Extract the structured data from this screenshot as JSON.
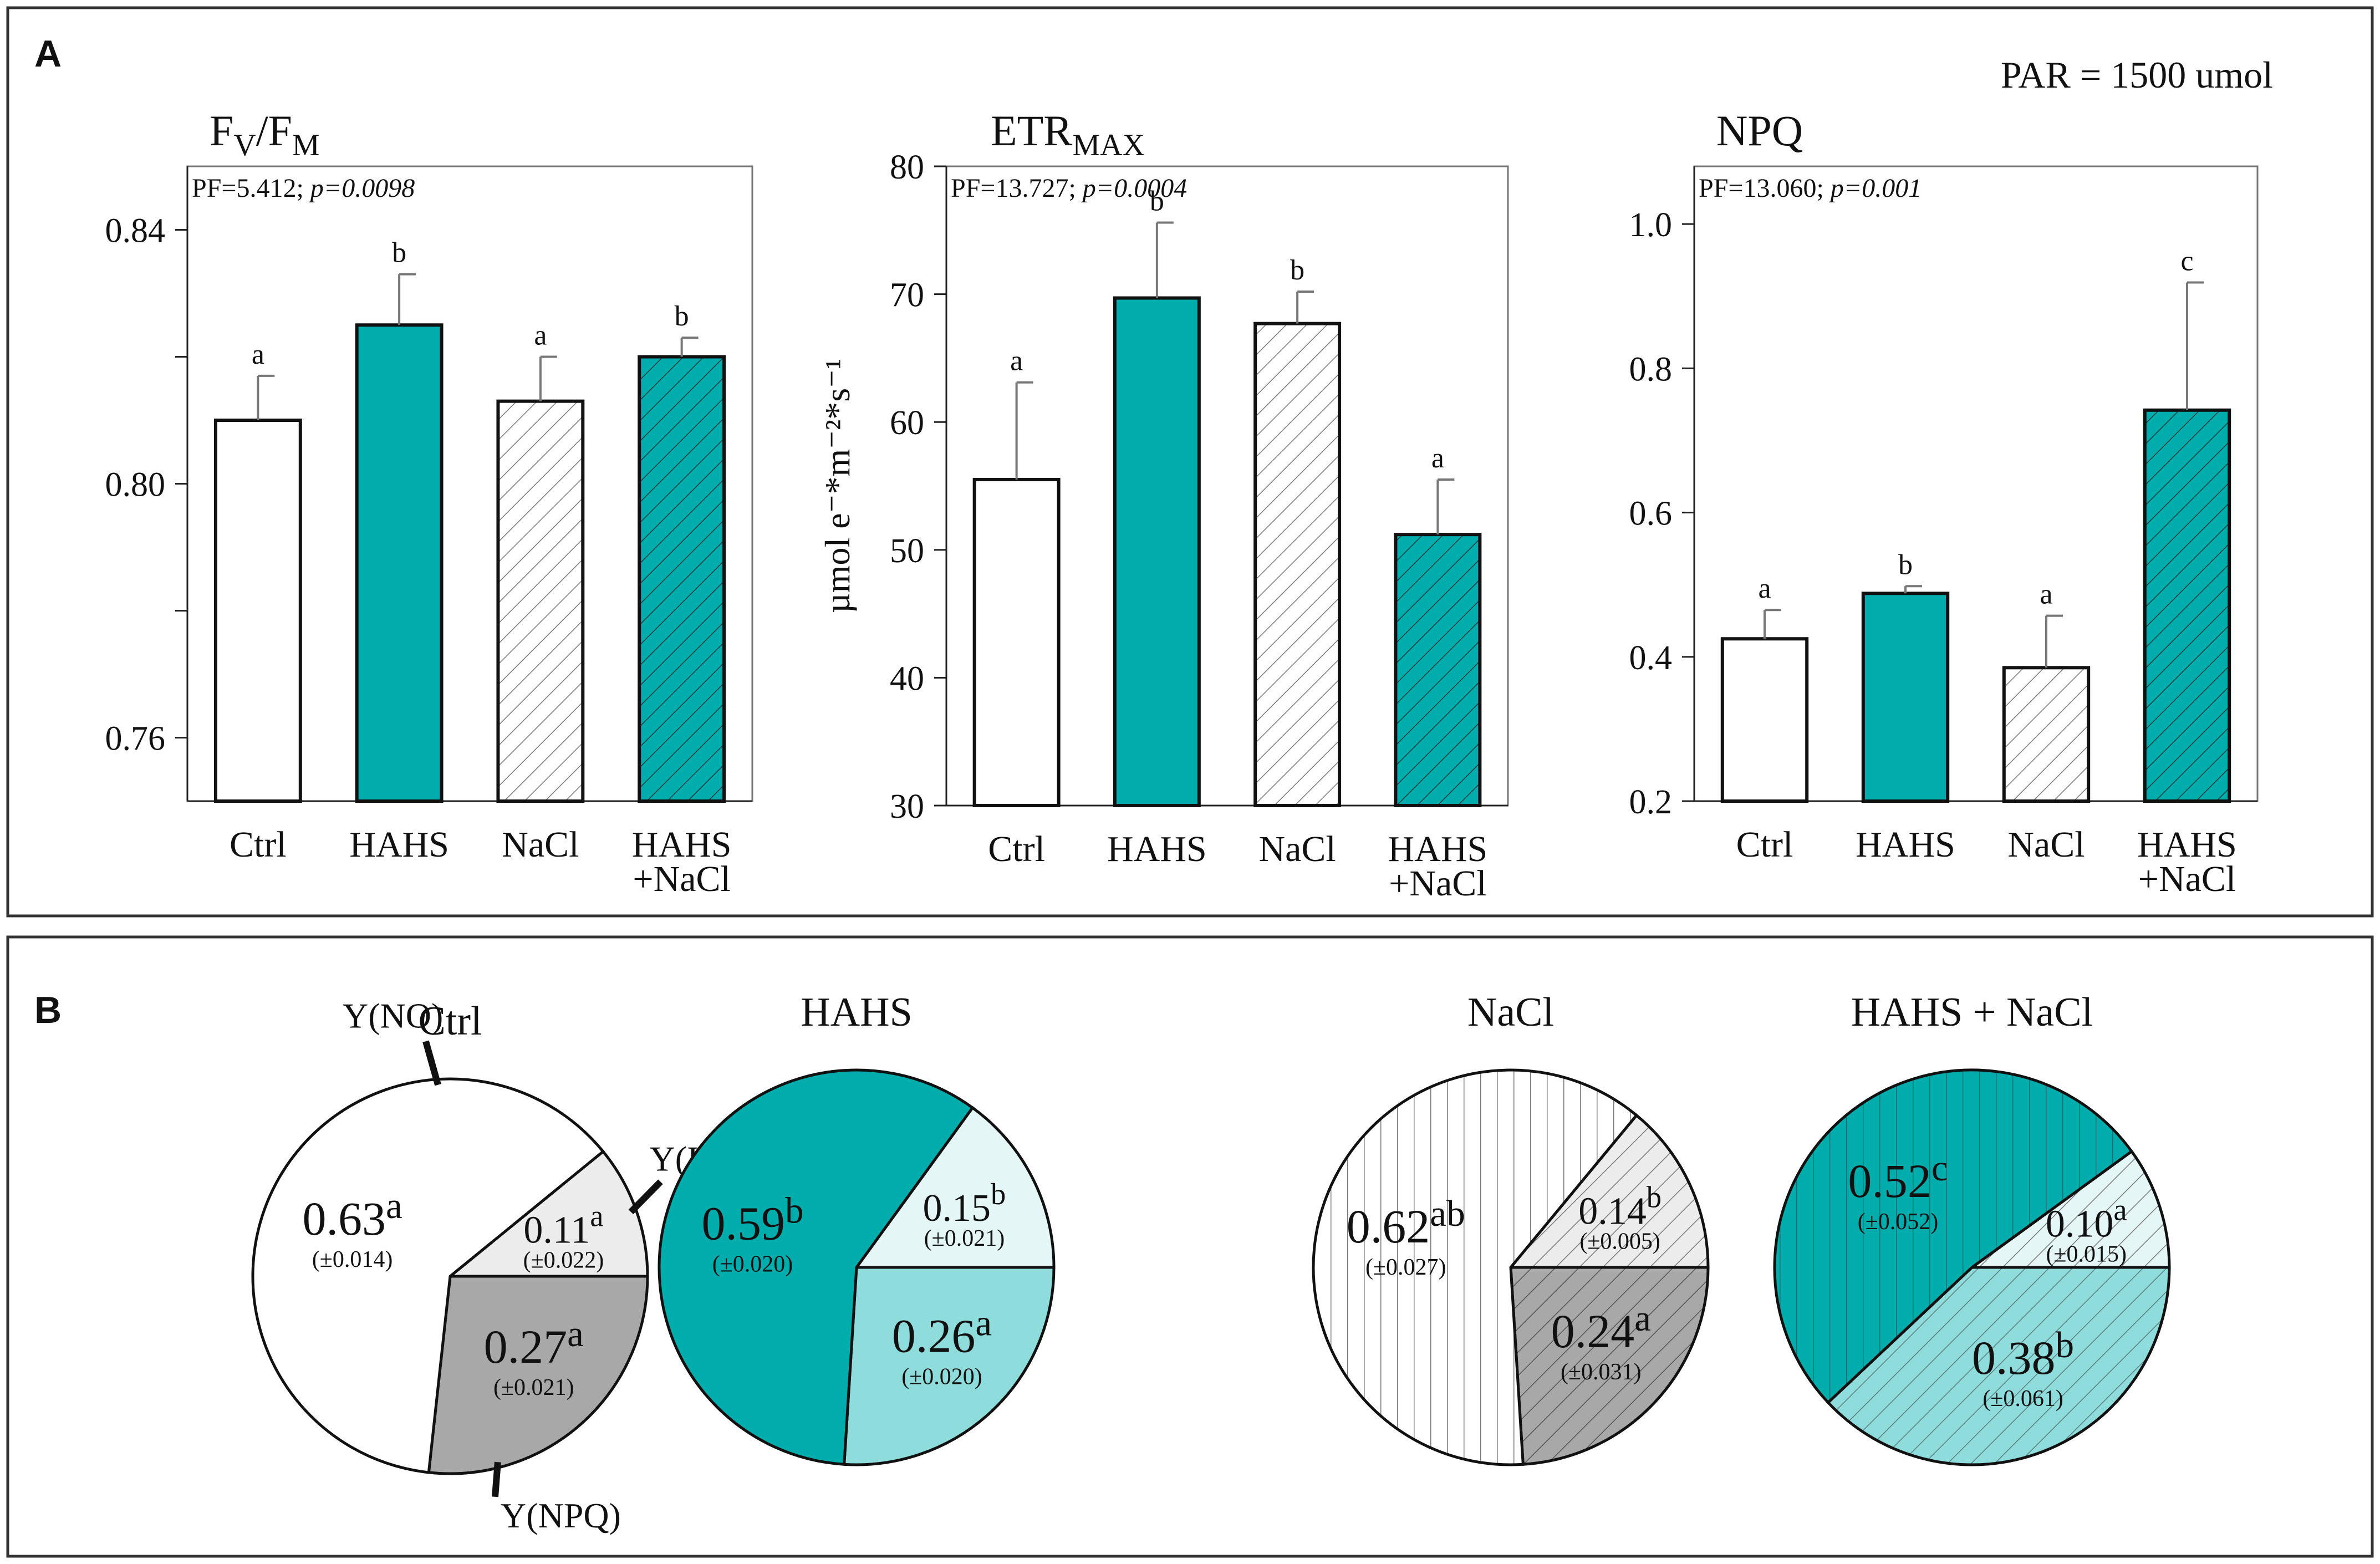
{
  "panels": {
    "a": "A",
    "b": "B"
  },
  "par_note": "PAR = 1500 umol",
  "colors": {
    "teal": "#00adad",
    "light_teal": "#8edcdc",
    "pale_teal": "#e4f6f6",
    "grey": "#a8a8a8",
    "light_grey": "#ececec",
    "white": "#ffffff",
    "hatch": "#7a7a7a"
  },
  "chart_data": [
    {
      "type": "bar",
      "id": "fvfm",
      "title": "F",
      "title_sub1": "V",
      "title_mid": "/F",
      "title_sub2": "M",
      "stat_pf": "PF=5.412; ",
      "stat_p": "p=0.0098",
      "ylabel": "",
      "ylim": [
        0.75,
        0.85
      ],
      "ticks": [
        0.76,
        0.78,
        0.8,
        0.82,
        0.84
      ],
      "tick_labels": [
        "0.76",
        "",
        "0.80",
        "",
        "0.84"
      ],
      "categories": [
        [
          "Ctrl"
        ],
        [
          "HAHS"
        ],
        [
          "NaCl"
        ],
        [
          "HAHS",
          "+NaCl"
        ]
      ],
      "values": [
        0.81,
        0.825,
        0.813,
        0.82
      ],
      "errors": [
        0.007,
        0.008,
        0.007,
        0.003
      ],
      "letters": [
        "a",
        "b",
        "a",
        "b"
      ],
      "fills": [
        "white",
        "teal",
        "white-hatch",
        "teal-hatch"
      ]
    },
    {
      "type": "bar",
      "id": "etr",
      "title": "ETR",
      "title_sub1": "MAX",
      "title_mid": "",
      "title_sub2": "",
      "stat_pf": "PF=13.727; ",
      "stat_p": "p=0.0004",
      "ylabel": "µmol e⁻*m⁻²*s⁻¹",
      "ylim": [
        30,
        80
      ],
      "ticks": [
        30,
        40,
        50,
        60,
        70,
        80
      ],
      "tick_labels": [
        "30",
        "40",
        "50",
        "60",
        "70",
        "80"
      ],
      "categories": [
        [
          "Ctrl"
        ],
        [
          "HAHS"
        ],
        [
          "NaCl"
        ],
        [
          "HAHS",
          "+NaCl"
        ]
      ],
      "values": [
        55.5,
        69.7,
        67.7,
        51.2
      ],
      "errors": [
        7.6,
        5.9,
        2.5,
        4.3
      ],
      "letters": [
        "a",
        "b",
        "b",
        "a"
      ],
      "fills": [
        "white",
        "teal",
        "white-hatch",
        "teal-hatch"
      ]
    },
    {
      "type": "bar",
      "id": "npq",
      "title": "NPQ",
      "title_sub1": "",
      "title_mid": "",
      "title_sub2": "",
      "stat_pf": "PF=13.060; ",
      "stat_p": "p=0.001",
      "ylabel": "",
      "ylim": [
        0.2,
        1.08
      ],
      "ticks": [
        0.2,
        0.4,
        0.6,
        0.8,
        1.0
      ],
      "tick_labels": [
        "0.2",
        "0.4",
        "0.6",
        "0.8",
        "1.0"
      ],
      "categories": [
        [
          "Ctrl"
        ],
        [
          "HAHS"
        ],
        [
          "NaCl"
        ],
        [
          "HAHS",
          "+NaCl"
        ]
      ],
      "values": [
        0.425,
        0.488,
        0.385,
        0.742
      ],
      "errors": [
        0.04,
        0.01,
        0.072,
        0.177
      ],
      "letters": [
        "a",
        "b",
        "a",
        "c"
      ],
      "fills": [
        "white",
        "teal",
        "white-hatch",
        "teal-hatch"
      ]
    },
    {
      "type": "pie",
      "id": "pie-ctrl",
      "title": "Ctrl",
      "order": [
        "Y(II)",
        "Y(NPQ)",
        "Y(NO)"
      ],
      "values": [
        0.11,
        0.27,
        0.63
      ],
      "value_labels": [
        "0.11",
        "0.27",
        "0.63"
      ],
      "letters": [
        "a",
        "a",
        "a"
      ],
      "errors": [
        "(±0.022)",
        "(±0.021)",
        "(±0.014)"
      ],
      "fills": [
        "light-grey",
        "grey",
        "white"
      ],
      "callouts": [
        "Y(II)",
        "Y(NPQ)",
        "Y(NO)"
      ]
    },
    {
      "type": "pie",
      "id": "pie-hahs",
      "title": "HAHS",
      "order": [
        "Y(II)",
        "Y(NPQ)",
        "Y(NO)"
      ],
      "values": [
        0.15,
        0.26,
        0.59
      ],
      "value_labels": [
        "0.15",
        "0.26",
        "0.59"
      ],
      "letters": [
        "b",
        "a",
        "b"
      ],
      "errors": [
        "(±0.021)",
        "(±0.020)",
        "(±0.020)"
      ],
      "fills": [
        "pale-teal",
        "light-teal",
        "teal"
      ],
      "callouts": [
        "",
        "",
        ""
      ]
    },
    {
      "type": "pie",
      "id": "pie-nacl",
      "title": "NaCl",
      "order": [
        "Y(II)",
        "Y(NPQ)",
        "Y(NO)"
      ],
      "values": [
        0.14,
        0.24,
        0.62
      ],
      "value_labels": [
        "0.14",
        "0.24",
        "0.62"
      ],
      "letters": [
        "b",
        "a",
        "ab"
      ],
      "errors": [
        "(±0.005)",
        "(±0.031)",
        "(±0.027)"
      ],
      "fills": [
        "light-grey-hatch",
        "grey-hatch",
        "white-vhatch"
      ],
      "callouts": [
        "",
        "",
        ""
      ]
    },
    {
      "type": "pie",
      "id": "pie-hahs-nacl",
      "title": "HAHS + NaCl",
      "order": [
        "Y(II)",
        "Y(NPQ)",
        "Y(NO)"
      ],
      "values": [
        0.1,
        0.38,
        0.52
      ],
      "value_labels": [
        "0.10",
        "0.38",
        "0.52"
      ],
      "letters": [
        "a",
        "b",
        "c"
      ],
      "errors": [
        "(±0.015)",
        "(±0.061)",
        "(±0.052)"
      ],
      "fills": [
        "pale-teal-hatch",
        "light-teal-hatch",
        "teal-vhatch"
      ],
      "callouts": [
        "",
        "",
        ""
      ]
    }
  ]
}
